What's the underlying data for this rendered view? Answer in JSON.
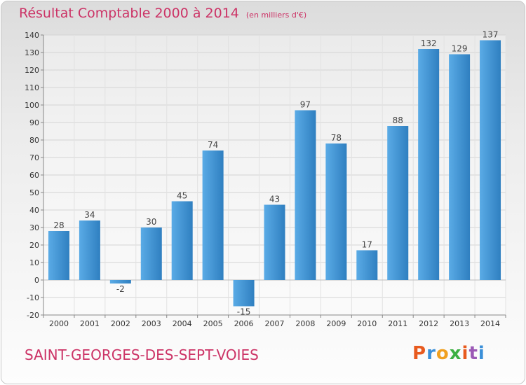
{
  "header": {
    "title": "Résultat Comptable 2000 à 2014",
    "unit": "(en milliers d'€)"
  },
  "footer": {
    "commune": "SAINT-GEORGES-DES-SEPT-VOIES",
    "logo": "Proxiti"
  },
  "colors": {
    "title": "#cc3366",
    "bar_light": "#5aabe6",
    "bar_dark": "#2f7fc0",
    "logo_letters": [
      "#e85a1e",
      "#3a8fd8",
      "#f0a020",
      "#3cb043",
      "#e85a1e",
      "#9b59b6",
      "#3a8fd8"
    ]
  },
  "chart_data": {
    "type": "bar",
    "title": "Résultat Comptable 2000 à 2014",
    "subtitle": "(en milliers d'€)",
    "categories": [
      "2000",
      "2001",
      "2002",
      "2003",
      "2004",
      "2005",
      "2006",
      "2007",
      "2008",
      "2009",
      "2010",
      "2011",
      "2012",
      "2013",
      "2014"
    ],
    "values": [
      28,
      34,
      -2,
      30,
      45,
      74,
      -15,
      43,
      97,
      78,
      17,
      88,
      132,
      129,
      137
    ],
    "ylim": [
      -20,
      140
    ],
    "yticks": [
      -20,
      -10,
      0,
      10,
      20,
      30,
      40,
      50,
      60,
      70,
      80,
      90,
      100,
      110,
      120,
      130,
      140
    ],
    "grid": true,
    "legend": "none"
  }
}
